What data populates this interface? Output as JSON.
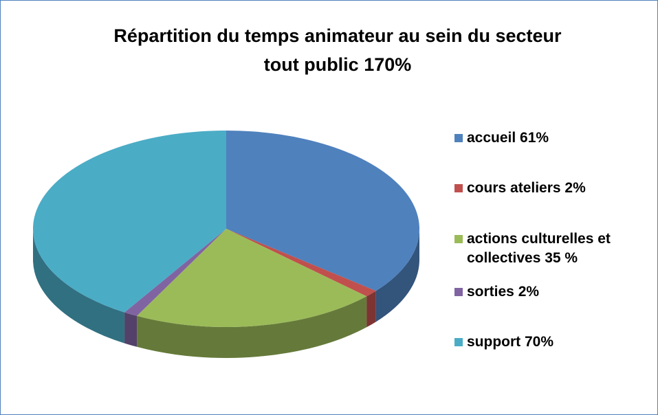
{
  "chart_data": {
    "type": "pie3d",
    "title": "Répartition du temps animateur au sein du secteur tout public 170%",
    "categories": [
      "accueil 61%",
      "cours ateliers 2%",
      "actions culturelles et collectives 35 %",
      "sorties 2%",
      "support 70%"
    ],
    "values": [
      61,
      2,
      35,
      2,
      70
    ],
    "colors": [
      "#4f81bd",
      "#c0504d",
      "#9bbb59",
      "#8064a2",
      "#4bacc6"
    ],
    "legend": "right"
  }
}
